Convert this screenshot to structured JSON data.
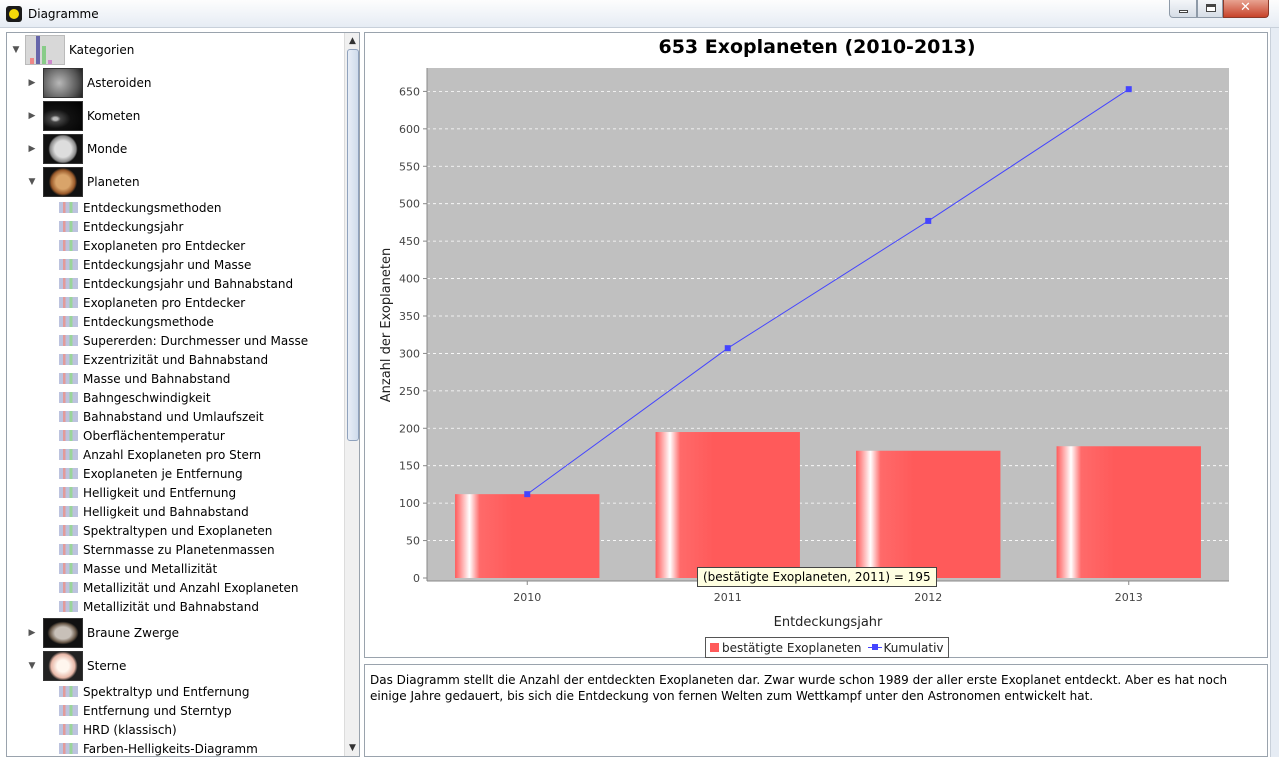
{
  "window": {
    "title": "Diagramme"
  },
  "tree": {
    "root": {
      "label": "Kategorien"
    },
    "nodes": [
      {
        "label": "Asteroiden"
      },
      {
        "label": "Kometen"
      },
      {
        "label": "Monde"
      },
      {
        "label": "Planeten"
      },
      {
        "label": "Braune Zwerge"
      },
      {
        "label": "Sterne"
      }
    ],
    "planet_leaves": [
      "Entdeckungsmethoden",
      "Entdeckungsjahr",
      "Exoplaneten pro Entdecker",
      "Entdeckungsjahr und Masse",
      "Entdeckungsjahr und Bahnabstand",
      "Exoplaneten pro Entdecker",
      "Entdeckungsmethode",
      "Supererden: Durchmesser und Masse",
      "Exzentrizität und Bahnabstand",
      "Masse und Bahnabstand",
      "Bahngeschwindigkeit",
      "Bahnabstand und Umlaufszeit",
      "Oberflächentemperatur",
      "Anzahl Exoplaneten pro Stern",
      "Exoplaneten je Entfernung",
      "Helligkeit und Entfernung",
      "Helligkeit und Bahnabstand",
      "Spektraltypen und Exoplaneten",
      "Sternmasse zu Planetenmassen",
      "Masse und Metallizität",
      "Metallizität und Anzahl Exoplaneten",
      "Metallizität und Bahnabstand"
    ],
    "star_leaves": [
      "Spektraltyp und Entfernung",
      "Entfernung und Sterntyp",
      "HRD (klassisch)",
      "Farben-Helligkeits-Diagramm"
    ]
  },
  "chart_data": {
    "type": "bar",
    "title": "653 Exoplaneten (2010-2013)",
    "xlabel": "Entdeckungsjahr",
    "ylabel": "Anzahl der Exoplaneten",
    "categories": [
      "2010",
      "2011",
      "2012",
      "2013"
    ],
    "series": [
      {
        "name": "bestätigte Exoplaneten",
        "type": "bar",
        "values": [
          112,
          195,
          170,
          176
        ],
        "color": "#ff5a5a"
      },
      {
        "name": "Kumulativ",
        "type": "line",
        "values": [
          112,
          307,
          477,
          653
        ],
        "color": "#4444ff"
      }
    ],
    "ylim": [
      0,
      680
    ],
    "yticks": [
      0,
      50,
      100,
      150,
      200,
      250,
      300,
      350,
      400,
      450,
      500,
      550,
      600,
      650
    ],
    "grid": true,
    "legend": "bottom-center",
    "plot_background": "#c0c0c0"
  },
  "tooltip": {
    "text": "(bestätigte Exoplaneten, 2011) = 195"
  },
  "description": {
    "text": " Das Diagramm stellt die Anzahl der entdeckten Exoplaneten dar. Zwar wurde schon 1989 der aller erste Exoplanet entdeckt. Aber es hat noch einige Jahre gedauert, bis sich die Entdeckung von fernen Welten zum Wettkampf unter den Astronomen entwickelt hat."
  }
}
